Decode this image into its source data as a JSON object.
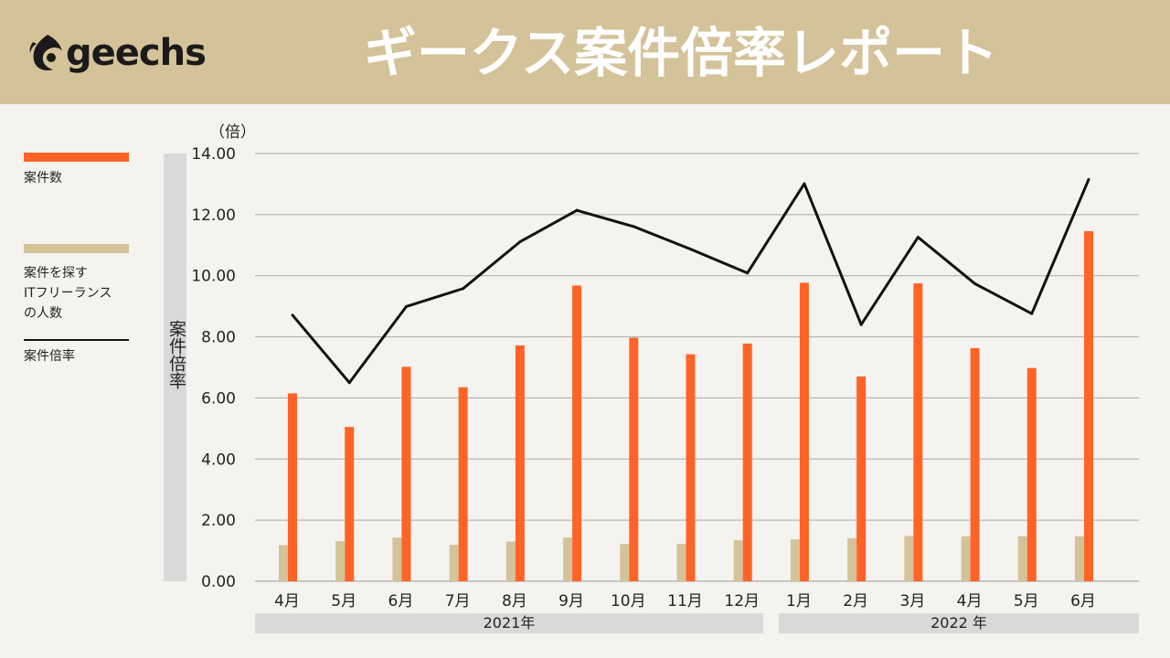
{
  "header": {
    "logo_text": "geechs",
    "title": "ギークス案件倍率レポート",
    "background": "#d4c299"
  },
  "legend": [
    {
      "label": "案件数",
      "color": "#ff6426"
    },
    {
      "label": "案件を探す\nITフリーランス\nの人数",
      "color": "#d4c299"
    },
    {
      "label": "案件倍率",
      "color": "#111111"
    }
  ],
  "axis": {
    "ylabel": "案件倍率",
    "unit": "（倍）"
  },
  "year_groups": [
    {
      "label": "2021年"
    },
    {
      "label": "2022 年"
    }
  ],
  "chart_data": {
    "type": "bar",
    "ylim": [
      0,
      14
    ],
    "yticks": [
      "0.00",
      "2.00",
      "4.00",
      "6.00",
      "8.00",
      "10.00",
      "12.00",
      "14.00"
    ],
    "grid": true,
    "legend_position": "left",
    "categories": [
      "4月",
      "5月",
      "6月",
      "7月",
      "8月",
      "9月",
      "10月",
      "11月",
      "12月",
      "1月",
      "2月",
      "3月",
      "4月",
      "5月",
      "6月"
    ],
    "series": [
      {
        "name": "案件数",
        "type": "bar",
        "color": "#ff6426",
        "values": [
          6.15,
          5.05,
          7.02,
          6.35,
          7.72,
          9.68,
          7.97,
          7.43,
          7.78,
          9.77,
          6.7,
          9.75,
          7.63,
          6.98,
          11.46
        ]
      },
      {
        "name": "案件を探す ITフリーランス の人数",
        "type": "bar",
        "color": "#d4c299",
        "values": [
          1.18,
          1.31,
          1.43,
          1.19,
          1.3,
          1.43,
          1.22,
          1.22,
          1.34,
          1.37,
          1.41,
          1.48,
          1.47,
          1.47,
          1.47
        ]
      },
      {
        "name": "案件倍率",
        "type": "line",
        "color": "#111111",
        "values": [
          8.71,
          6.5,
          8.99,
          9.58,
          11.11,
          12.14,
          11.61,
          10.87,
          10.09,
          13.01,
          8.4,
          11.26,
          9.74,
          8.76,
          13.15
        ]
      }
    ]
  }
}
